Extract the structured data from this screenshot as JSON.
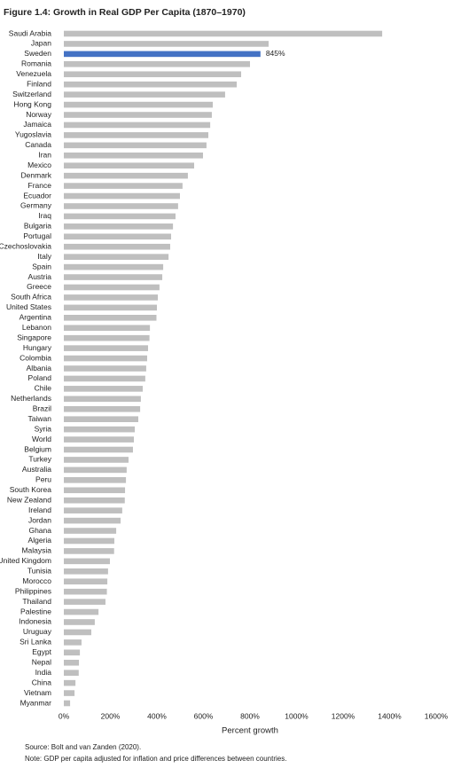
{
  "chart_data": {
    "type": "hbar",
    "title": "Figure 1.4: Growth in Real GDP Per Capita (1870–1970)",
    "x_label": "Percent growth",
    "source": "Source: Bolt and van Zanden (2020).",
    "note": "Note: GDP per capita adjusted for inflation and price differences between countries.",
    "categories": [
      "Saudi Arabia",
      "Japan",
      "Sweden",
      "Romania",
      "Venezuela",
      "Finland",
      "Switzerland",
      "Hong Kong",
      "Norway",
      "Jamaica",
      "Yugoslavia",
      "Canada",
      "Iran",
      "Mexico",
      "Denmark",
      "France",
      "Ecuador",
      "Germany",
      "Iraq",
      "Bulgaria",
      "Portugal",
      "Czechoslovakia",
      "Italy",
      "Spain",
      "Austria",
      "Greece",
      "South Africa",
      "United States",
      "Argentina",
      "Lebanon",
      "Singapore",
      "Hungary",
      "Colombia",
      "Albania",
      "Poland",
      "Chile",
      "Netherlands",
      "Brazil",
      "Taiwan",
      "Syria",
      "World",
      "Belgium",
      "Turkey",
      "Australia",
      "Peru",
      "South Korea",
      "New Zealand",
      "Ireland",
      "Jordan",
      "Ghana",
      "Algeria",
      "Malaysia",
      "United Kingdom",
      "Tunisia",
      "Morocco",
      "Philippines",
      "Thailand",
      "Palestine",
      "Indonesia",
      "Uruguay",
      "Sri Lanka",
      "Egypt",
      "Nepal",
      "India",
      "China",
      "Vietnam",
      "Myanmar"
    ],
    "values": [
      1368,
      880,
      845,
      800,
      762,
      743,
      693,
      640,
      636,
      629,
      621,
      613,
      598,
      560,
      533,
      510,
      499,
      491,
      480,
      469,
      461,
      457,
      450,
      427,
      423,
      411,
      404,
      400,
      398,
      370,
      368,
      362,
      358,
      354,
      350,
      339,
      331,
      328,
      320,
      305,
      301,
      297,
      278,
      270,
      267,
      263,
      262,
      251,
      244,
      225,
      217,
      216,
      198,
      190,
      187,
      185,
      179,
      149,
      133,
      118,
      76,
      69,
      65,
      64,
      50,
      46,
      27
    ],
    "value_labels": [
      null,
      null,
      "845%",
      null,
      null,
      null,
      null,
      null,
      null,
      null,
      null,
      null,
      null,
      null,
      null,
      null,
      null,
      null,
      null,
      null,
      null,
      null,
      null,
      null,
      null,
      null,
      null,
      null,
      null,
      null,
      null,
      null,
      null,
      null,
      null,
      null,
      null,
      null,
      null,
      null,
      null,
      null,
      null,
      null,
      null,
      null,
      null,
      null,
      null,
      null,
      null,
      null,
      null,
      null,
      null,
      null,
      null,
      null,
      null,
      null,
      null,
      null,
      null,
      null,
      null,
      null,
      null
    ],
    "color": "#bfbfbf",
    "highlight_color": "#4472c4",
    "xlim": [
      0,
      1600
    ],
    "xticks": [
      {
        "value": 0,
        "label": "0%"
      },
      {
        "value": 200,
        "label": "200%"
      },
      {
        "value": 400,
        "label": "400%"
      },
      {
        "value": 600,
        "label": "600%"
      },
      {
        "value": 800,
        "label": "800%"
      },
      {
        "value": 1000,
        "label": "1000%"
      },
      {
        "value": 1200,
        "label": "1200%"
      },
      {
        "value": 1400,
        "label": "1400%"
      },
      {
        "value": 1600,
        "label": "1600%"
      }
    ],
    "grid": false
  }
}
